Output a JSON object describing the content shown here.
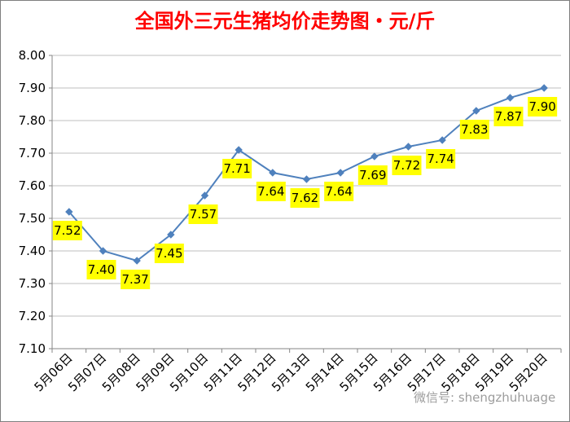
{
  "chart_data": {
    "type": "line",
    "title": "全国外三元生猪均价走势图・元/斤",
    "categories": [
      "5月06日",
      "5月07日",
      "5月08日",
      "5月09日",
      "5月10日",
      "5月11日",
      "5月12日",
      "5月13日",
      "5月14日",
      "5月15日",
      "5月16日",
      "5月17日",
      "5月18日",
      "5月19日",
      "5月20日"
    ],
    "values": [
      7.52,
      7.4,
      7.37,
      7.45,
      7.57,
      7.71,
      7.64,
      7.62,
      7.64,
      7.69,
      7.72,
      7.74,
      7.83,
      7.87,
      7.9
    ],
    "data_labels": [
      "7.52",
      "7.40",
      "7.37",
      "7.45",
      "7.57",
      "7.71",
      "7.64",
      "7.62",
      "7.64",
      "7.69",
      "7.72",
      "7.74",
      "7.83",
      "7.87",
      "7.90"
    ],
    "ylim": [
      7.1,
      8.0
    ],
    "yticks": [
      "7.10",
      "7.20",
      "7.30",
      "7.40",
      "7.50",
      "7.60",
      "7.70",
      "7.80",
      "7.90",
      "8.00"
    ],
    "xlabel": "",
    "ylabel": "",
    "grid": true,
    "legend": "none",
    "colors": {
      "title": "#ff0000",
      "line": "#4f81bd",
      "label_bg": "#ffff00",
      "grid": "#bfbfbf"
    }
  },
  "watermark": "微信号: shengzhuhuage"
}
